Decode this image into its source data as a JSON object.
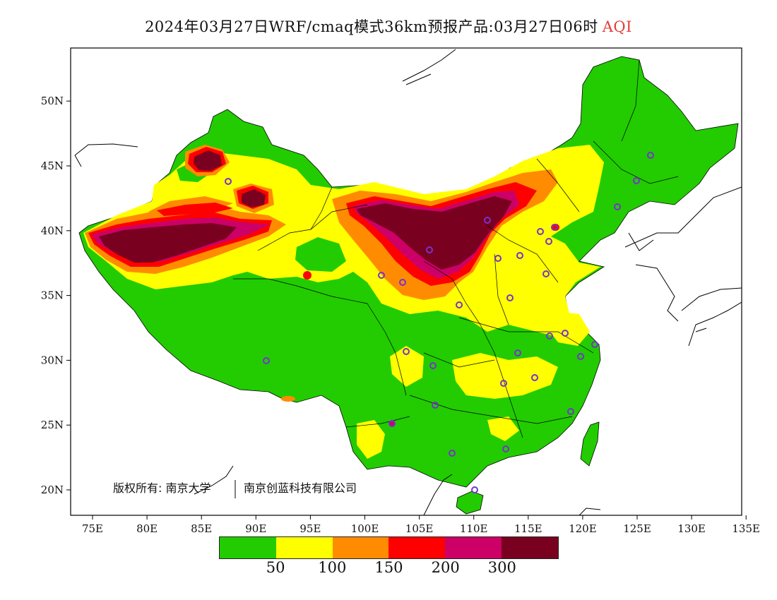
{
  "title": {
    "main": "2024年03月27日WRF/cmaq模式36km预报产品:03月27日06时",
    "variable": "AQI"
  },
  "map": {
    "x_ticks": [
      "75E",
      "80E",
      "85E",
      "90E",
      "95E",
      "100E",
      "105E",
      "110E",
      "115E",
      "120E",
      "125E",
      "130E",
      "135E"
    ],
    "y_ticks": [
      "20N",
      "25N",
      "30N",
      "35N",
      "40N",
      "45N",
      "50N"
    ],
    "copyright": "版权所有: 南京大学",
    "copyright_org": "南京创蓝科技有限公司"
  },
  "legend": {
    "colors": [
      "#22cc00",
      "#ffff00",
      "#ff8c00",
      "#ff0000",
      "#cc0066",
      "#7a0020"
    ],
    "labels": [
      "50",
      "100",
      "150",
      "200",
      "300"
    ]
  },
  "colors": {
    "ocean": "#ffffff",
    "border": "#000000",
    "station": "#7733cc"
  }
}
